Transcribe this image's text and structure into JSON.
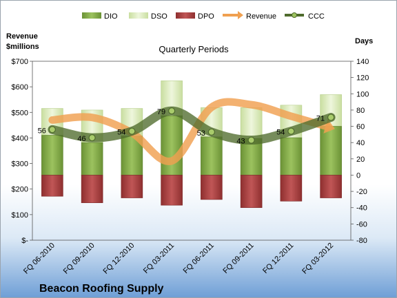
{
  "chart_data": {
    "type": "bar",
    "title": "Quarterly Periods",
    "company": "Beacon Roofing Supply",
    "y_left_label": [
      "Revenue",
      "$millions"
    ],
    "y_right_label": "Days",
    "y_left_ticks": [
      "$-",
      "$100",
      "$200",
      "$300",
      "$400",
      "$500",
      "$600",
      "$700"
    ],
    "y_right_ticks": [
      "-80",
      "-60",
      "-40",
      "-20",
      "0",
      "20",
      "40",
      "60",
      "80",
      "100",
      "120",
      "140"
    ],
    "y_left_lim": [
      0,
      700
    ],
    "y_right_lim": [
      -80,
      140
    ],
    "categories": [
      "FQ 06-2010",
      "FQ 09-2010",
      "FQ 12-2010",
      "FQ 03-2011",
      "FQ 06-2011",
      "FQ 09-2011",
      "FQ 12-2011",
      "FQ 03-2012"
    ],
    "legend": [
      "DIO",
      "DSO",
      "DPO",
      "Revenue",
      "CCC"
    ],
    "legend_position": "top",
    "series": [
      {
        "name": "DIO",
        "axis": "right",
        "kind": "stacked-bar",
        "color": "#7fa84a",
        "values": [
          49,
          40,
          48,
          73,
          47,
          45,
          46,
          60
        ]
      },
      {
        "name": "DSO",
        "axis": "right",
        "kind": "stacked-bar",
        "color": "#d8eab8",
        "values": [
          33,
          40,
          34,
          43,
          36,
          38,
          40,
          39
        ]
      },
      {
        "name": "DPO",
        "axis": "right",
        "kind": "negative-bar",
        "color": "#b24a4a",
        "values": [
          -26,
          -34,
          -28,
          -37,
          -30,
          -40,
          -32,
          -28
        ]
      },
      {
        "name": "Revenue",
        "axis": "left",
        "kind": "line",
        "color": "#f0a050",
        "values": [
          470,
          480,
          420,
          310,
          520,
          530,
          485,
          440
        ]
      },
      {
        "name": "CCC",
        "axis": "right",
        "kind": "line",
        "color": "#4f6b2d",
        "values": [
          56,
          46,
          54,
          79,
          53,
          43,
          54,
          71
        ]
      }
    ],
    "ccc_labels": [
      "56",
      "46",
      "54",
      "79",
      "53",
      "43",
      "54",
      "71"
    ]
  }
}
